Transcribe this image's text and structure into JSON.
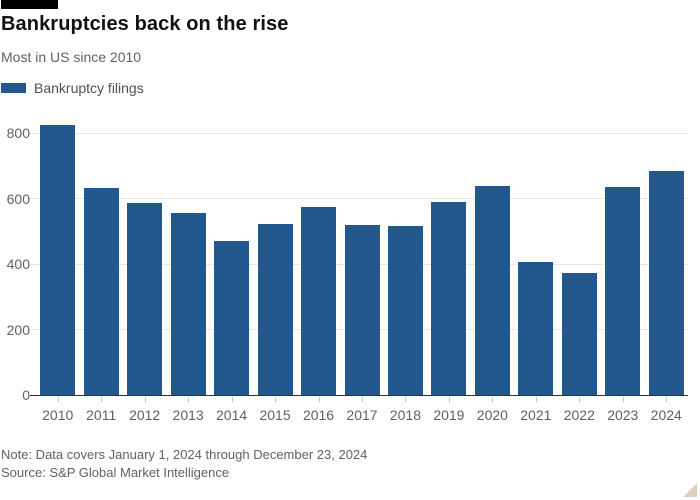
{
  "header": {
    "title": "Bankruptcies back on the rise",
    "subtitle": "Most in US since 2010",
    "legend_label": "Bankruptcy filings"
  },
  "chart_data": {
    "type": "bar",
    "title": "Bankruptcies back on the rise",
    "subtitle": "Most in US since 2010",
    "legend": [
      "Bankruptcy filings"
    ],
    "legend_position": "top-left",
    "categories": [
      "2010",
      "2011",
      "2012",
      "2013",
      "2014",
      "2015",
      "2016",
      "2017",
      "2018",
      "2019",
      "2020",
      "2021",
      "2022",
      "2023",
      "2024"
    ],
    "values": [
      827,
      634,
      586,
      558,
      471,
      524,
      576,
      520,
      518,
      590,
      638,
      406,
      372,
      636,
      686
    ],
    "xlabel": "",
    "ylabel": "",
    "ylim": [
      0,
      870
    ],
    "yticks": [
      0,
      200,
      400,
      600,
      800
    ],
    "grid": "horizontal",
    "bar_color": "#23588f",
    "gridline_color": "#f2e4dd",
    "axis_text_color": "#66605c"
  },
  "footer": {
    "note": "Note: Data covers January 1, 2024 through December 23, 2024",
    "source": "Source: S&P Global Market Intelligence"
  }
}
